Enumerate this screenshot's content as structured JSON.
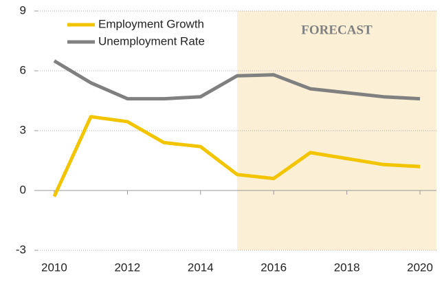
{
  "chart_data": {
    "type": "line",
    "x": [
      2010,
      2011,
      2012,
      2013,
      2014,
      2015,
      2016,
      2017,
      2018,
      2019,
      2020
    ],
    "series": [
      {
        "name": "Employment Growth",
        "color": "#f2c500",
        "values": [
          -0.3,
          3.7,
          3.45,
          2.4,
          2.2,
          0.8,
          0.6,
          1.9,
          1.6,
          1.3,
          1.2
        ]
      },
      {
        "name": "Unemployment Rate",
        "color": "#808080",
        "values": [
          6.5,
          5.4,
          4.6,
          4.6,
          4.7,
          5.75,
          5.8,
          5.1,
          4.9,
          4.7,
          4.6
        ]
      }
    ],
    "xlim": [
      2009.55,
      2020.45
    ],
    "xticks": [
      2010,
      2012,
      2014,
      2016,
      2018,
      2020
    ],
    "ylim": [
      -3,
      9
    ],
    "yticks": [
      -3,
      0,
      3,
      6,
      9
    ],
    "grid": true,
    "legend": "upper left",
    "annotation": {
      "text": "FORECAST",
      "x_start": 2015,
      "color": "#fbefd5"
    }
  }
}
